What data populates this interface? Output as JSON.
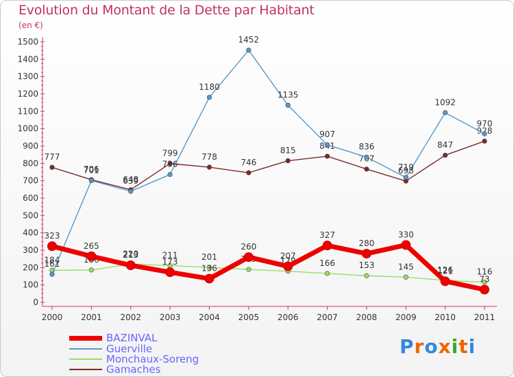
{
  "title": "Evolution du Montant de la Dette par Habitant",
  "subtitle": "(en €)",
  "logo": "Proxiti",
  "chart_data": {
    "type": "line",
    "x": [
      "2000",
      "2001",
      "2002",
      "2003",
      "2004",
      "2005",
      "2006",
      "2007",
      "2008",
      "2009",
      "2010",
      "2011"
    ],
    "ylim": [
      0,
      1500
    ],
    "yticks": [
      0,
      100,
      200,
      300,
      400,
      500,
      600,
      700,
      800,
      900,
      1000,
      1100,
      1200,
      1300,
      1400,
      1500
    ],
    "grid": false,
    "legend_position": "bottom-left",
    "series": [
      {
        "name": "Gamaches",
        "color": "#7a2a2a",
        "values": [
          777,
          706,
          648,
          799,
          778,
          746,
          815,
          841,
          767,
          698,
          847,
          928
        ]
      },
      {
        "name": "Monchaux-Soreng",
        "color": "#99dd66",
        "values": [
          184,
          186,
          220,
          211,
          201,
          189,
          179,
          166,
          153,
          145,
          126,
          116
        ]
      },
      {
        "name": "Guerville",
        "color": "#5599cc",
        "values": [
          161,
          701,
          639,
          736,
          1180,
          1452,
          1135,
          907,
          836,
          719,
          1092,
          970
        ]
      },
      {
        "name": "BAZINVAL",
        "color": "#ee0000",
        "values": [
          323,
          265,
          213,
          173,
          136,
          260,
          207,
          327,
          280,
          330,
          121,
          73
        ]
      }
    ]
  }
}
